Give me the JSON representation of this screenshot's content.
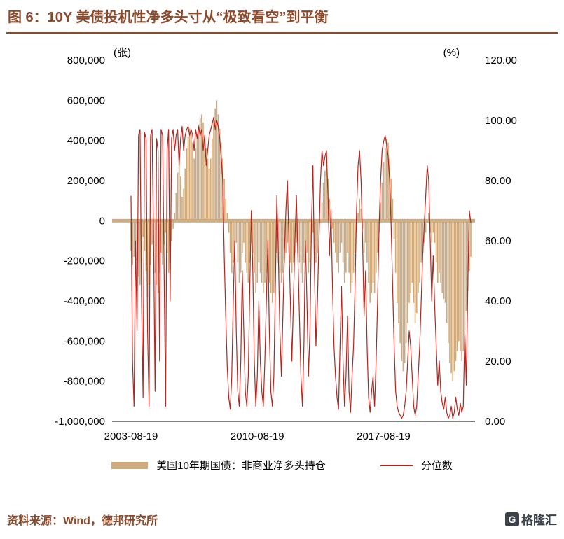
{
  "header": {
    "title": "图 6：10Y 美债投机性净多头寸从“极致看空”到平衡"
  },
  "footer": {
    "source": "资料来源：Wind，德邦研究所",
    "logo_mark": "G",
    "logo_text": "格隆汇"
  },
  "colors": {
    "accent_brown": "#8B4A2B",
    "bar": "#CFAC80",
    "line": "#B7251F"
  },
  "chart_data": {
    "type": "combo_bar_line_dual_axis",
    "left_axis": {
      "label": "(张)",
      "min": -1000000,
      "max": 800000,
      "ticks": [
        800000,
        600000,
        400000,
        200000,
        0,
        -200000,
        -400000,
        -600000,
        -800000,
        -1000000
      ]
    },
    "right_axis": {
      "label": "(%)",
      "min": 0,
      "max": 120,
      "ticks": [
        120,
        100,
        80,
        60,
        40,
        20,
        0
      ]
    },
    "x_start": "2003-08-19",
    "x_ticks": [
      "2003-08-19",
      "2010-08-19",
      "2017-08-19"
    ],
    "x_tick_indices": [
      0,
      84,
      168
    ],
    "grid": false,
    "legend_position": "bottom",
    "legend": [
      {
        "label": "美国10年期国债：非商业净多头持仓",
        "type": "bar",
        "color": "#CFAC80"
      },
      {
        "label": "分位数",
        "type": "line",
        "color": "#B7251F"
      }
    ],
    "series": [
      {
        "name": "美国10年期国债：非商业净多头持仓",
        "type": "bar",
        "axis": "left",
        "color": "#CFAC80",
        "values_scale": 1000,
        "values": [
          -150,
          -220,
          -180,
          -120,
          -200,
          -280,
          -320,
          -200,
          -80,
          -150,
          -250,
          -380,
          -320,
          -220,
          -120,
          -180,
          -260,
          -320,
          -360,
          -260,
          -160,
          -220,
          -120,
          -60,
          -160,
          -260,
          -200,
          -100,
          -40,
          40,
          140,
          240,
          320,
          220,
          120,
          160,
          260,
          360,
          420,
          460,
          430,
          390,
          310,
          360,
          430,
          480,
          510,
          530,
          490,
          420,
          360,
          310,
          260,
          310,
          410,
          510,
          560,
          600,
          530,
          460,
          390,
          310,
          210,
          110,
          40,
          -60,
          -160,
          -260,
          -210,
          -160,
          -110,
          -210,
          -310,
          -260,
          -160,
          -110,
          -210,
          -260,
          -310,
          -210,
          -110,
          -160,
          -260,
          -360,
          -310,
          -210,
          -260,
          -310,
          -360,
          -310,
          -260,
          -210,
          -310,
          -360,
          -410,
          -360,
          -260,
          -160,
          -210,
          -260,
          -310,
          -260,
          -210,
          -160,
          -110,
          -160,
          -210,
          -260,
          -210,
          -160,
          -110,
          -160,
          -210,
          -260,
          -310,
          -210,
          -110,
          -160,
          -260,
          -210,
          -110,
          -60,
          -160,
          -210,
          -160,
          -110,
          -10,
          90,
          190,
          250,
          280,
          210,
          110,
          60,
          -40,
          -110,
          -160,
          -210,
          -260,
          -160,
          -110,
          -210,
          -310,
          -260,
          -160,
          -260,
          -360,
          -310,
          -260,
          -160,
          -60,
          40,
          110,
          60,
          -40,
          -160,
          -110,
          -210,
          -310,
          -410,
          -360,
          -310,
          -360,
          -260,
          -160,
          -60,
          90,
          190,
          290,
          360,
          410,
          390,
          310,
          210,
          110,
          -90,
          -260,
          -410,
          -510,
          -610,
          -700,
          -750,
          -710,
          -610,
          -510,
          -410,
          -360,
          -310,
          -410,
          -510,
          -460,
          -360,
          -310,
          -210,
          -160,
          -110,
          -60,
          -10,
          40,
          -60,
          -110,
          -60,
          -110,
          -210,
          -310,
          -260,
          -310,
          -360,
          -390,
          -410,
          -510,
          -610,
          -710,
          -760,
          -800,
          -750,
          -700,
          -650,
          -600,
          -650,
          -700,
          -650,
          -550,
          -450,
          -350,
          -250,
          -180
        ]
      },
      {
        "name": "分位数",
        "type": "line",
        "axis": "right",
        "color": "#B7251F",
        "values_scale": 1,
        "values": [
          75,
          20,
          5,
          60,
          30,
          95,
          97,
          40,
          8,
          96,
          94,
          30,
          5,
          95,
          97,
          60,
          10,
          94,
          90,
          20,
          97,
          95,
          50,
          5,
          90,
          97,
          40,
          94,
          97,
          90,
          95,
          97,
          85,
          94,
          98,
          90,
          95,
          97,
          98,
          95,
          97,
          95,
          90,
          97,
          94,
          98,
          95,
          97,
          90,
          95,
          85,
          90,
          95,
          97,
          99,
          101,
          97,
          100,
          98,
          94,
          88,
          80,
          55,
          35,
          18,
          8,
          4,
          15,
          40,
          60,
          30,
          10,
          5,
          20,
          50,
          30,
          10,
          5,
          15,
          45,
          70,
          50,
          20,
          5,
          15,
          40,
          20,
          10,
          5,
          20,
          40,
          60,
          30,
          10,
          5,
          15,
          45,
          75,
          55,
          30,
          15,
          35,
          55,
          70,
          80,
          60,
          40,
          20,
          40,
          60,
          75,
          55,
          35,
          15,
          5,
          25,
          60,
          40,
          15,
          30,
          65,
          85,
          50,
          25,
          40,
          60,
          80,
          90,
          85,
          88,
          90,
          75,
          55,
          70,
          45,
          25,
          15,
          8,
          4,
          25,
          45,
          20,
          5,
          15,
          35,
          10,
          3,
          15,
          25,
          45,
          70,
          85,
          90,
          80,
          60,
          35,
          50,
          25,
          8,
          3,
          10,
          15,
          5,
          20,
          40,
          65,
          80,
          90,
          93,
          95,
          92,
          88,
          80,
          65,
          45,
          25,
          10,
          5,
          3,
          2,
          1,
          2,
          5,
          10,
          20,
          30,
          25,
          15,
          5,
          2,
          5,
          15,
          25,
          40,
          55,
          65,
          75,
          85,
          80,
          60,
          40,
          55,
          38,
          25,
          12,
          20,
          10,
          6,
          4,
          8,
          3,
          1,
          2,
          5,
          1,
          3,
          8,
          4,
          2,
          6,
          3,
          5,
          30,
          12,
          45,
          70,
          66
        ]
      }
    ]
  }
}
